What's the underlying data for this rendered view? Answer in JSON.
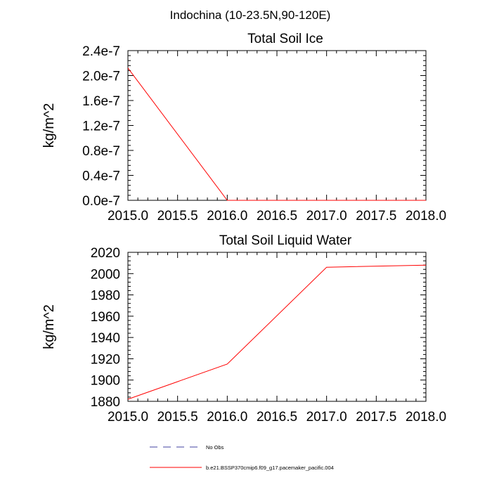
{
  "figure": {
    "title": "Indochina (10-23.5N,90-120E)"
  },
  "colors": {
    "series": "#ff0000",
    "obs": "#4040a0",
    "axis": "#000000"
  },
  "chart_data": [
    {
      "type": "line",
      "title": "Total Soil Ice",
      "ylabel": "kg/m^2",
      "xlabel": "",
      "xlim": [
        2015.0,
        2018.0
      ],
      "ylim": [
        0.0,
        2.4e-07
      ],
      "xticks": [
        2015.0,
        2015.5,
        2016.0,
        2016.5,
        2017.0,
        2017.5,
        2018.0
      ],
      "xtick_labels": [
        "2015.0",
        "2015.5",
        "2016.0",
        "2016.5",
        "2017.0",
        "2017.5",
        "2018.0"
      ],
      "yticks": [
        0.0,
        4e-08,
        8e-08,
        1.2e-07,
        1.6e-07,
        2e-07,
        2.4e-07
      ],
      "ytick_labels": [
        "0.0e-7",
        "0.4e-7",
        "0.8e-7",
        "1.2e-7",
        "1.6e-7",
        "2.0e-7",
        "2.4e-7"
      ],
      "grid": false,
      "series": [
        {
          "name": "b.e21.BSSP370cmip6.f09_g17.pacemaker_pacific.004",
          "x": [
            2015.0,
            2016.0,
            2017.0,
            2018.0
          ],
          "y": [
            2.12e-07,
            0.0,
            0.0,
            0.0
          ]
        }
      ]
    },
    {
      "type": "line",
      "title": "Total Soil Liquid Water",
      "ylabel": "kg/m^2",
      "xlabel": "",
      "xlim": [
        2015.0,
        2018.0
      ],
      "ylim": [
        1880,
        2020
      ],
      "xticks": [
        2015.0,
        2015.5,
        2016.0,
        2016.5,
        2017.0,
        2017.5,
        2018.0
      ],
      "xtick_labels": [
        "2015.0",
        "2015.5",
        "2016.0",
        "2016.5",
        "2017.0",
        "2017.5",
        "2018.0"
      ],
      "yticks": [
        1880,
        1900,
        1920,
        1940,
        1960,
        1980,
        2000,
        2020
      ],
      "ytick_labels": [
        "1880",
        "1900",
        "1920",
        "1940",
        "1960",
        "1980",
        "2000",
        "2020"
      ],
      "grid": false,
      "series": [
        {
          "name": "b.e21.BSSP370cmip6.f09_g17.pacemaker_pacific.004",
          "x": [
            2015.0,
            2016.0,
            2017.0,
            2018.0
          ],
          "y": [
            1882,
            1915,
            2006,
            2008
          ]
        }
      ]
    }
  ],
  "legend": {
    "placement": "bottom",
    "entries": [
      {
        "label": "No Obs",
        "style": "dashed",
        "color": "#4040a0"
      },
      {
        "label": "b.e21.BSSP370cmip6.f09_g17.pacemaker_pacific.004",
        "style": "solid",
        "color": "#ff0000"
      }
    ]
  }
}
